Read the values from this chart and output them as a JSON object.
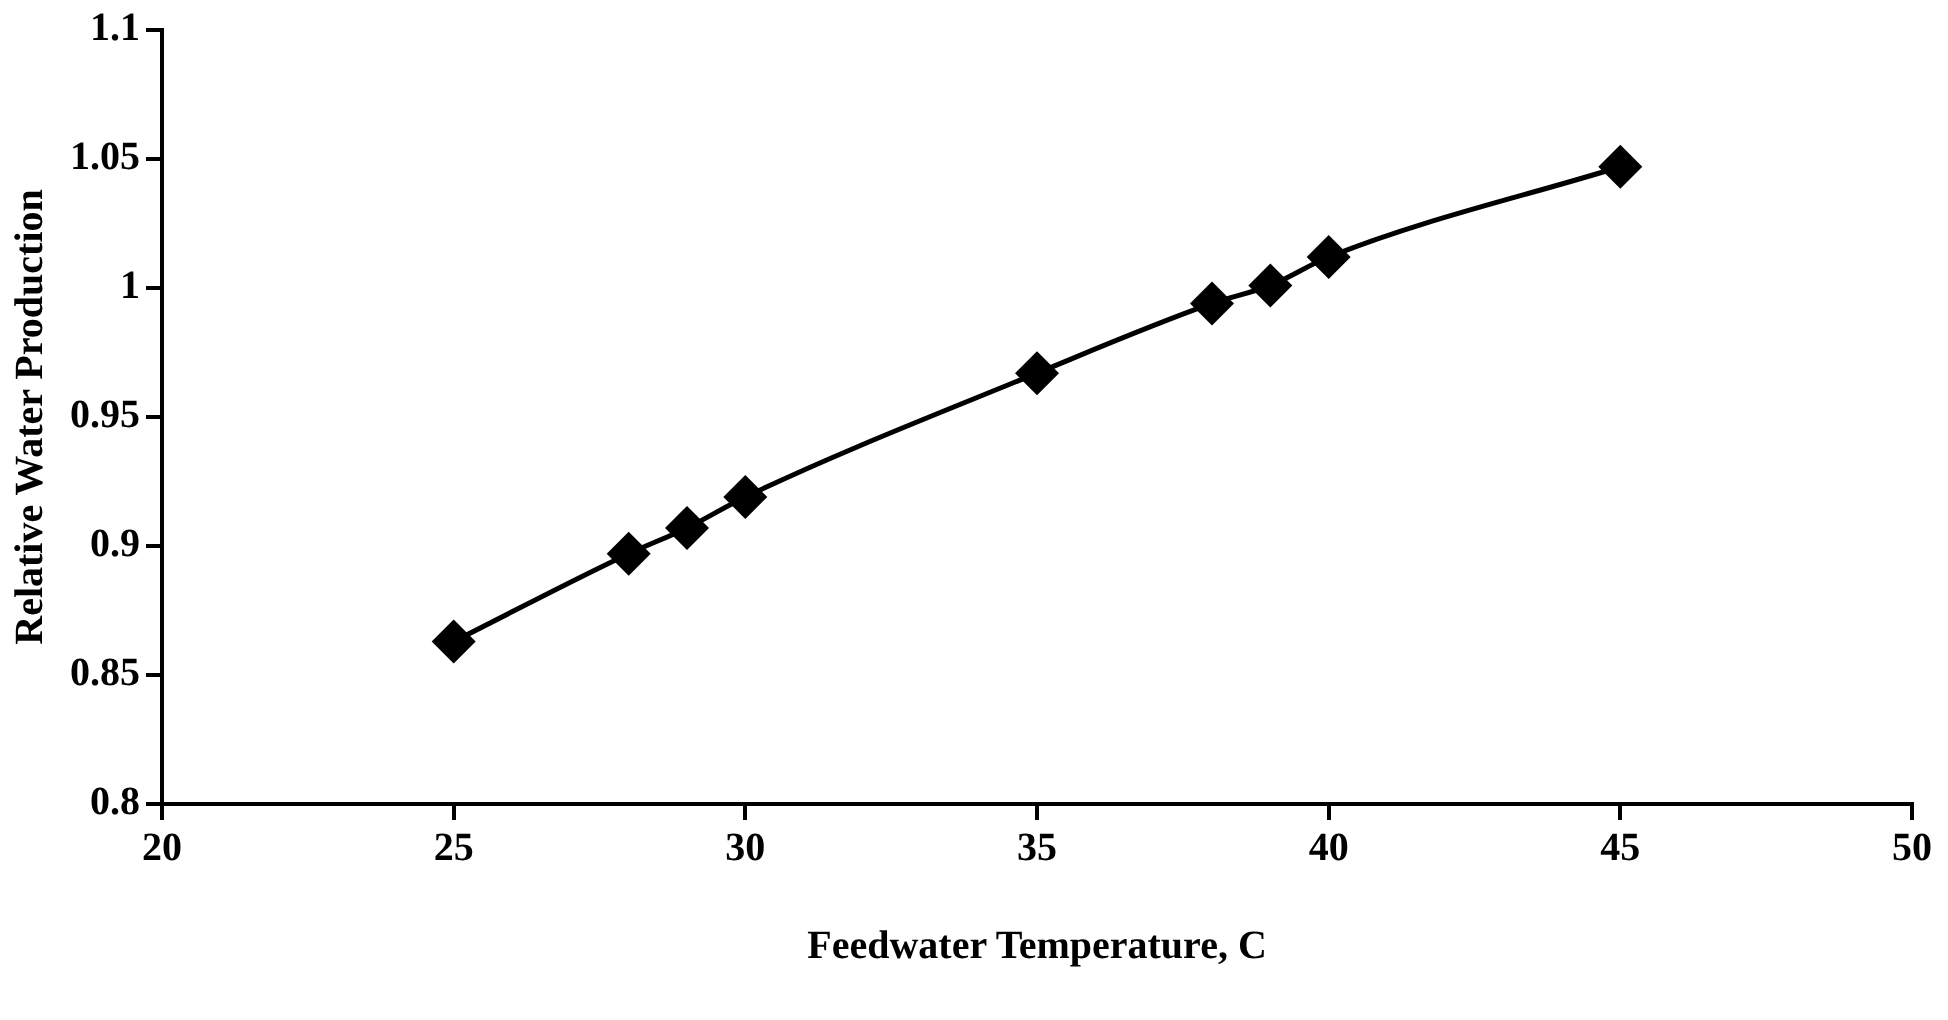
{
  "chart_data": {
    "type": "line",
    "xlabel": "Feedwater Temperature, C",
    "ylabel": "Relative Water Production",
    "x": [
      25,
      28,
      29,
      30,
      35,
      38,
      39,
      40,
      45
    ],
    "series": [
      {
        "color": "#000000",
        "values": [
          0.863,
          0.897,
          0.907,
          0.919,
          0.967,
          0.994,
          1.001,
          1.012,
          1.047
        ]
      }
    ],
    "xlim": [
      20,
      50
    ],
    "xticks": [
      20,
      25,
      30,
      35,
      40,
      45,
      50
    ],
    "ylim": [
      0.8,
      1.1
    ],
    "yticks": [
      {
        "value": 0.8,
        "label": "0.8"
      },
      0.85,
      {
        "value": 0.9,
        "label": "0.9"
      },
      0.95,
      {
        "value": 1,
        "label": "1"
      },
      1.05,
      {
        "value": 1.1,
        "label": "1.1"
      }
    ],
    "marker": "diamond",
    "line_style": "solid",
    "grid": false,
    "legend": false
  }
}
